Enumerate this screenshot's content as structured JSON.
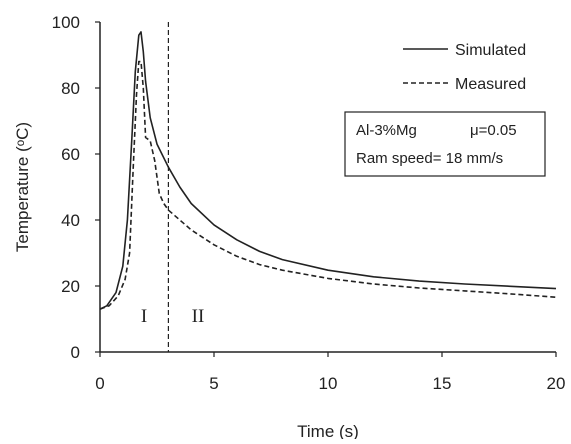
{
  "chart_data": {
    "type": "line",
    "xlabel": "Time (s)",
    "ylabel": "Temperature (ᵒC)",
    "xlim": [
      0,
      20
    ],
    "ylim": [
      0,
      100
    ],
    "x_ticks": [
      0,
      5,
      10,
      15,
      20
    ],
    "y_ticks": [
      0,
      20,
      40,
      60,
      80,
      100
    ],
    "x_tick_labels": [
      "0",
      "5",
      "10",
      "15",
      "20"
    ],
    "y_tick_labels": [
      "0",
      "20",
      "40",
      "60",
      "80",
      "100"
    ],
    "grid": false,
    "legend_position": "top-right",
    "series": [
      {
        "name": "Simulated",
        "style": "solid",
        "color": "#222222",
        "x": [
          0,
          0.3,
          0.7,
          1.0,
          1.2,
          1.4,
          1.55,
          1.7,
          1.8,
          1.9,
          2.0,
          2.2,
          2.5,
          3.0,
          3.5,
          4.0,
          5.0,
          6.0,
          7.0,
          8.0,
          10.0,
          12.0,
          14.0,
          16.0,
          18.0,
          20.0
        ],
        "y": [
          13,
          14,
          18,
          26,
          40,
          65,
          85,
          96,
          97,
          91,
          82,
          71,
          63,
          56,
          50,
          45,
          38.5,
          34,
          30.5,
          28,
          24.8,
          22.8,
          21.5,
          20.6,
          19.9,
          19.2
        ]
      },
      {
        "name": "Measured",
        "style": "dashed",
        "color": "#222222",
        "x": [
          0,
          0.4,
          0.8,
          1.1,
          1.3,
          1.45,
          1.6,
          1.7,
          1.8,
          1.9,
          2.0,
          2.2,
          2.4,
          2.6,
          2.8,
          3.0,
          3.5,
          4.0,
          5.0,
          6.0,
          7.0,
          8.0,
          10.0,
          12.0,
          14.0,
          16.0,
          18.0,
          20.0
        ],
        "y": [
          13,
          14,
          17,
          22,
          30,
          55,
          78,
          88,
          88,
          80,
          65,
          64,
          58,
          48,
          45,
          43,
          40,
          37,
          32.5,
          29,
          26.5,
          24.8,
          22.3,
          20.6,
          19.4,
          18.5,
          17.6,
          16.6
        ]
      }
    ],
    "vline": {
      "x": 3,
      "style": "dashed"
    },
    "annotations": {
      "region_1": "I",
      "region_2": "II",
      "box_line1_left": "Al-3%Mg",
      "box_line1_right": "μ=0.05",
      "box_line2": "Ram speed= 18 mm/s"
    }
  }
}
